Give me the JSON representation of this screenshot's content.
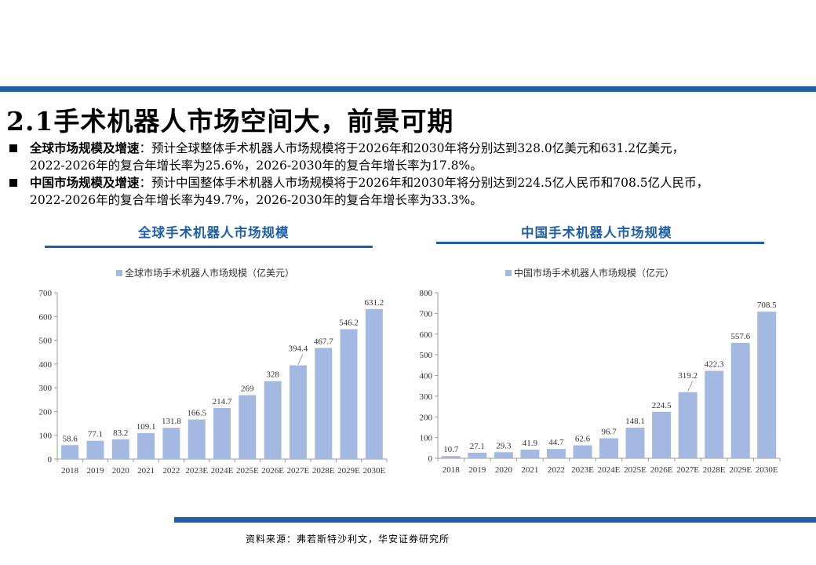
{
  "page": {
    "title": "2.1手术机器人市场空间大，前景可期",
    "bullets": [
      {
        "label": "全球市场规模及增速",
        "sep": "：",
        "line1": "预计全球整体手术机器人市场规模将于2026年和2030年将分别达到328.0亿美元和631.2亿美元，",
        "line2": "2022-2026年的复合年增长率为25.6%，2026-2030年的复合年增长率为17.8%。"
      },
      {
        "label": "中国市场规模及增速",
        "sep": "：",
        "line1": "预计中国整体手术机器人市场规模将于2026年和2030年将分别达到224.5亿人民币和708.5亿人民币，",
        "line2": "2022-2026年的复合年增长率为49.7%，2026-2030年的复合年增长率为33.3%。"
      }
    ],
    "source": "资料来源：弗若斯特沙利文，华安证券研究所",
    "accent_color": "#1f5fa6",
    "bar_color": "#a3b9e2"
  },
  "chart_data": [
    {
      "type": "bar",
      "title": "全球手术机器人市场规模",
      "legend": "全球市场手术机器人市场规模（亿美元）",
      "legend_position": "top",
      "categories": [
        "2018",
        "2019",
        "2020",
        "2021",
        "2022",
        "2023E",
        "2024E",
        "2025E",
        "2026E",
        "2027E",
        "2028E",
        "2029E",
        "2030E"
      ],
      "values": [
        58.6,
        77.1,
        83.2,
        109.1,
        131.8,
        166.5,
        214.7,
        269,
        328,
        394.4,
        467.7,
        546.2,
        631.2
      ],
      "labels": [
        "58.6",
        "77.1",
        "83.2",
        "109.1",
        "131.8",
        "166.5",
        "214.7",
        "269",
        "328",
        "394.4",
        "467.7",
        "546.2",
        "631.2"
      ],
      "ylim": [
        0,
        700
      ],
      "yticks": [
        0,
        100,
        200,
        300,
        400,
        500,
        600,
        700
      ],
      "grid": false
    },
    {
      "type": "bar",
      "title": "中国手术机器人市场规模",
      "legend": "中国市场手术机器人市场规模（亿元）",
      "legend_position": "top",
      "categories": [
        "2018",
        "2019",
        "2020",
        "2021",
        "2022",
        "2023E",
        "2024E",
        "2025E",
        "2026E",
        "2027E",
        "2028E",
        "2029E",
        "2030E"
      ],
      "values": [
        10.7,
        27.1,
        29.3,
        41.9,
        44.7,
        62.6,
        96.7,
        148.1,
        224.5,
        319.2,
        422.3,
        557.6,
        708.5
      ],
      "labels": [
        "10.7",
        "27.1",
        "29.3",
        "41.9",
        "44.7",
        "62.6",
        "96.7",
        "148.1",
        "224.5",
        "319.2",
        "422.3",
        "557.6",
        "708.5"
      ],
      "ylim": [
        0,
        800
      ],
      "yticks": [
        0,
        100,
        200,
        300,
        400,
        500,
        600,
        700,
        800
      ],
      "grid": false
    }
  ]
}
